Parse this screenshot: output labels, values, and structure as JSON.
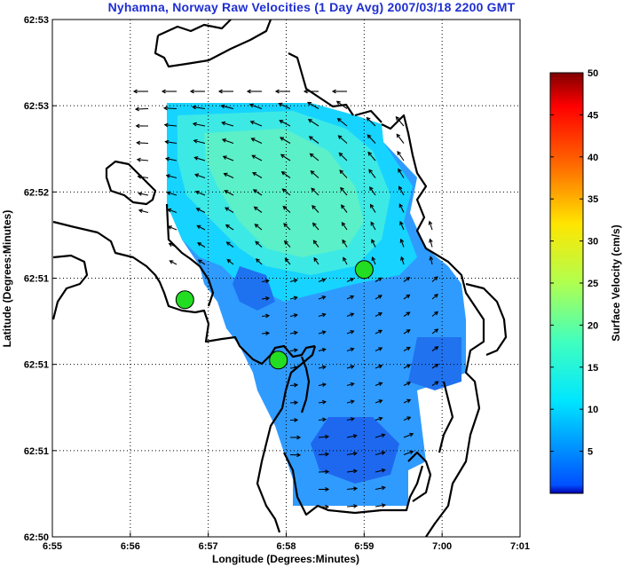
{
  "chart_data": {
    "type": "heatmap",
    "title": "Nyhamna, Norway Raw Velocities (1 Day Avg) 2007/03/18 2200 GMT",
    "xlabel": "Longitude (Degrees:Minutes)",
    "ylabel": "Latitude (Degrees:Minutes)",
    "x_ticks": [
      "6:55",
      "6:56",
      "6:57",
      "6:58",
      "6:59",
      "7:00",
      "7:01"
    ],
    "y_ticks": [
      "62:50",
      "62:51",
      "62:51",
      "62:51",
      "62:52",
      "62:53",
      "62:53"
    ],
    "xlim": [
      0,
      6
    ],
    "ylim": [
      0,
      6
    ],
    "grid": true,
    "colorbar": {
      "label": "Surface Velocity (cm/s)",
      "range": [
        0,
        50
      ],
      "ticks": [
        "5",
        "10",
        "15",
        "20",
        "25",
        "30",
        "35",
        "40",
        "45",
        "50"
      ],
      "colormap": "jet"
    },
    "sites": [
      {
        "x": 1.7,
        "y": 2.75
      },
      {
        "x": 2.9,
        "y": 2.05
      },
      {
        "x": 4.0,
        "y": 3.1
      }
    ]
  }
}
